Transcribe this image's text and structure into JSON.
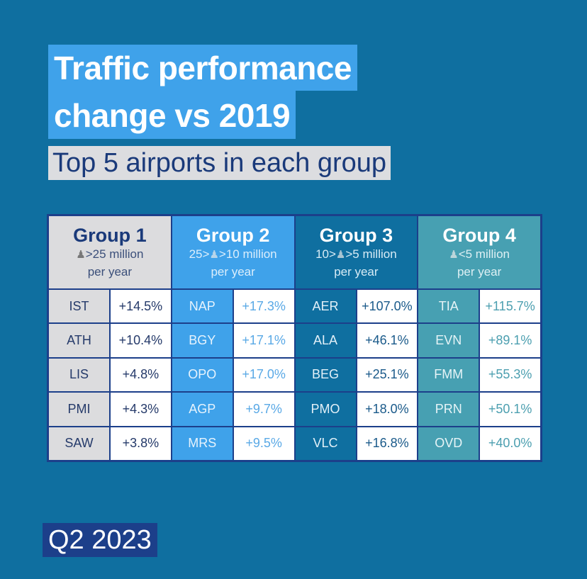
{
  "header": {
    "title_line1": "Traffic performance",
    "title_line2": "change vs 2019",
    "subtitle": "Top 5 airports in each group"
  },
  "footer": {
    "period": "Q2 2023"
  },
  "colors": {
    "background": "#0f6fa0",
    "title_bg": "#3fa2ea",
    "subtitle_bg": "#dcdde0",
    "border": "#1c3f8a",
    "group1": "#dcdcde",
    "group2": "#3fa2ea",
    "group3": "#0f6fa0",
    "group4": "#47a0b2"
  },
  "chart_data": {
    "type": "table",
    "title": "Traffic performance change vs 2019",
    "subtitle": "Top 5 airports in each group",
    "period": "Q2 2023",
    "groups": [
      {
        "name": "Group 1",
        "range_prefix": "",
        "range_suffix": ">25 million",
        "unit": "per year",
        "icon": "passenger-icon",
        "airports": [
          {
            "code": "IST",
            "change": "+14.5%"
          },
          {
            "code": "ATH",
            "change": "+10.4%"
          },
          {
            "code": "LIS",
            "change": "+4.8%"
          },
          {
            "code": "PMI",
            "change": "+4.3%"
          },
          {
            "code": "SAW",
            "change": "+3.8%"
          }
        ]
      },
      {
        "name": "Group 2",
        "range_prefix": "25>",
        "range_suffix": ">10 million",
        "unit": "per year",
        "icon": "passenger-icon",
        "airports": [
          {
            "code": "NAP",
            "change": "+17.3%"
          },
          {
            "code": "BGY",
            "change": "+17.1%"
          },
          {
            "code": "OPO",
            "change": "+17.0%"
          },
          {
            "code": "AGP",
            "change": "+9.7%"
          },
          {
            "code": "MRS",
            "change": "+9.5%"
          }
        ]
      },
      {
        "name": "Group 3",
        "range_prefix": "10>",
        "range_suffix": ">5 million",
        "unit": "per year",
        "icon": "passenger-icon",
        "airports": [
          {
            "code": "AER",
            "change": "+107.0%"
          },
          {
            "code": "ALA",
            "change": "+46.1%"
          },
          {
            "code": "BEG",
            "change": "+25.1%"
          },
          {
            "code": "PMO",
            "change": "+18.0%"
          },
          {
            "code": "VLC",
            "change": "+16.8%"
          }
        ]
      },
      {
        "name": "Group 4",
        "range_prefix": "",
        "range_suffix": "<5 million",
        "unit": "per year",
        "icon": "passenger-icon",
        "airports": [
          {
            "code": "TIA",
            "change": "+115.7%"
          },
          {
            "code": "EVN",
            "change": "+89.1%"
          },
          {
            "code": "FMM",
            "change": "+55.3%"
          },
          {
            "code": "PRN",
            "change": "+50.1%"
          },
          {
            "code": "OVD",
            "change": "+40.0%"
          }
        ]
      }
    ]
  }
}
